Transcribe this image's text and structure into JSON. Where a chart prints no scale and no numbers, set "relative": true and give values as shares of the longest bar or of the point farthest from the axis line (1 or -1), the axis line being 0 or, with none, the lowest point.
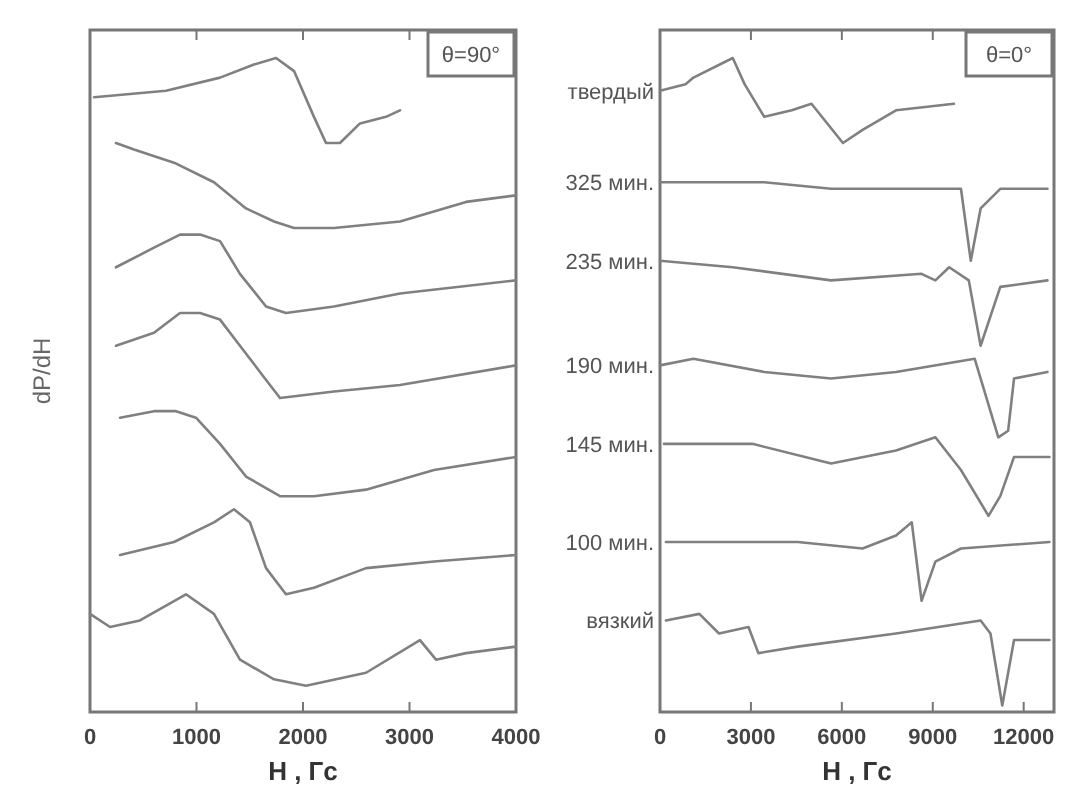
{
  "chart_data": [
    {
      "type": "line",
      "relative": true,
      "xlabel": "H , Гс",
      "ylabel": "dP/dH",
      "xlim": [
        0,
        4000
      ],
      "xticks": [
        0,
        1000,
        2000,
        3000,
        4000
      ],
      "annotations": [
        "θ=90°"
      ],
      "series": [
        {
          "color": "#808080",
          "x": [
            38,
            714,
            1221,
            1540,
            1747,
            1916,
            2103,
            2216,
            2347,
            2535,
            2779,
            2911
          ],
          "values": [
            0.94,
            0.95,
            0.97,
            0.99,
            1.0,
            0.98,
            0.91,
            0.87,
            0.87,
            0.9,
            0.91,
            0.92
          ]
        },
        {
          "color": "#808080",
          "x": [
            244,
            413,
            789,
            1164,
            1465,
            1728,
            1916,
            2291,
            2911,
            3531,
            4000
          ],
          "values": [
            0.87,
            0.86,
            0.84,
            0.81,
            0.77,
            0.75,
            0.74,
            0.74,
            0.75,
            0.78,
            0.79
          ]
        },
        {
          "color": "#808080",
          "x": [
            244,
            601,
            845,
            1033,
            1221,
            1408,
            1653,
            1840,
            2291,
            2911,
            4000
          ],
          "values": [
            0.68,
            0.71,
            0.73,
            0.73,
            0.72,
            0.67,
            0.62,
            0.61,
            0.62,
            0.64,
            0.66
          ]
        },
        {
          "color": "#808080",
          "x": [
            244,
            601,
            845,
            1033,
            1221,
            1408,
            1596,
            1784,
            2291,
            2911,
            4000
          ],
          "values": [
            0.56,
            0.58,
            0.61,
            0.61,
            0.6,
            0.56,
            0.52,
            0.48,
            0.49,
            0.5,
            0.53
          ]
        },
        {
          "color": "#808080",
          "x": [
            282,
            601,
            808,
            995,
            1221,
            1465,
            1784,
            2103,
            2592,
            3230,
            4000
          ],
          "values": [
            0.45,
            0.46,
            0.46,
            0.45,
            0.41,
            0.36,
            0.33,
            0.33,
            0.34,
            0.37,
            0.39
          ]
        },
        {
          "color": "#808080",
          "x": [
            282,
            789,
            1164,
            1352,
            1502,
            1653,
            1840,
            2103,
            2592,
            3230,
            4000
          ],
          "values": [
            0.24,
            0.26,
            0.29,
            0.31,
            0.29,
            0.22,
            0.18,
            0.19,
            0.22,
            0.23,
            0.24
          ]
        },
        {
          "color": "#808080",
          "x": [
            0,
            188,
            469,
            901,
            1164,
            1408,
            1728,
            2028,
            2592,
            3098,
            3249,
            3531,
            4000
          ],
          "values": [
            0.15,
            0.13,
            0.14,
            0.18,
            0.15,
            0.08,
            0.05,
            0.04,
            0.06,
            0.11,
            0.08,
            0.09,
            0.1
          ]
        }
      ]
    },
    {
      "type": "line",
      "relative": true,
      "xlabel": "H , Гс",
      "xlim": [
        0,
        13000
      ],
      "xticks": [
        0,
        3000,
        6000,
        9000,
        12000
      ],
      "annotations": [
        "θ=0°"
      ],
      "series": [
        {
          "name": "твердый",
          "color": "#808080",
          "x": [
            0,
            844,
            1103,
            2401,
            2791,
            3440,
            4348,
            4997,
            6036,
            6685,
            7788,
            9700
          ],
          "values": [
            0.95,
            0.96,
            0.97,
            1.0,
            0.96,
            0.91,
            0.92,
            0.93,
            0.87,
            0.89,
            0.92,
            0.93
          ]
        },
        {
          "name": "325 мин.",
          "color": "#808080",
          "x": [
            0,
            3440,
            5646,
            8891,
            9930,
            10254,
            10579,
            11228,
            12785
          ],
          "values": [
            0.81,
            0.81,
            0.8,
            0.8,
            0.8,
            0.69,
            0.77,
            0.8,
            0.8
          ]
        },
        {
          "name": "235 мин.",
          "color": "#808080",
          "x": [
            0,
            2401,
            5646,
            8631,
            9086,
            9541,
            10189,
            10579,
            11228,
            12785
          ],
          "values": [
            0.69,
            0.68,
            0.66,
            0.67,
            0.66,
            0.68,
            0.66,
            0.56,
            0.65,
            0.66
          ]
        },
        {
          "name": "190 мин.",
          "color": "#808080",
          "x": [
            0,
            1103,
            3440,
            5646,
            7788,
            10384,
            10903,
            11163,
            11487,
            11682,
            12785
          ],
          "values": [
            0.53,
            0.54,
            0.52,
            0.51,
            0.52,
            0.54,
            0.46,
            0.42,
            0.43,
            0.51,
            0.52
          ]
        },
        {
          "name": "145 мин.",
          "color": "#808080",
          "x": [
            130,
            3050,
            5646,
            7788,
            9086,
            9930,
            10838,
            11228,
            11682,
            12850
          ],
          "values": [
            0.41,
            0.41,
            0.38,
            0.4,
            0.42,
            0.37,
            0.3,
            0.33,
            0.39,
            0.39
          ]
        },
        {
          "name": "100 мин.",
          "color": "#808080",
          "x": [
            195,
            4543,
            6685,
            7788,
            8307,
            8631,
            9086,
            9930,
            12850
          ],
          "values": [
            0.26,
            0.26,
            0.25,
            0.27,
            0.29,
            0.17,
            0.23,
            0.25,
            0.26
          ]
        },
        {
          "name": "вязкий",
          "color": "#808080",
          "x": [
            195,
            1298,
            1947,
            2921,
            3245,
            4543,
            7788,
            10579,
            10903,
            11293,
            11682,
            12850
          ],
          "values": [
            0.14,
            0.15,
            0.12,
            0.13,
            0.09,
            0.1,
            0.12,
            0.14,
            0.12,
            0.01,
            0.11,
            0.11
          ]
        }
      ]
    }
  ]
}
